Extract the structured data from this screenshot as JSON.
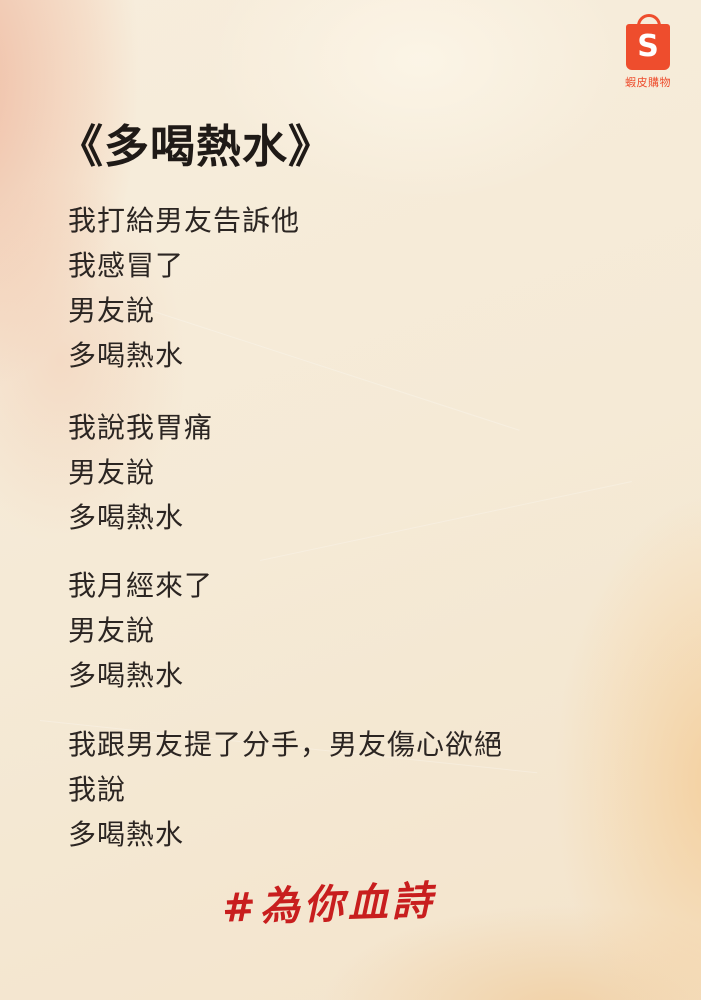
{
  "logo": {
    "glyph": "S",
    "label": "蝦皮購物"
  },
  "title": "《多喝熱水》",
  "stanzas": [
    [
      "我打給男友告訴他",
      "我感冒了",
      "男友說",
      "多喝熱水"
    ],
    [
      "我說我胃痛",
      "男友說",
      "多喝熱水"
    ],
    [
      "我月經來了",
      "男友說",
      "多喝熱水"
    ],
    [
      "我跟男友提了分手，男友傷心欲絕",
      "我說",
      "多喝熱水"
    ]
  ],
  "hashtag": "#為你血詩",
  "colors": {
    "brand": "#ee4d2d",
    "hashtag": "#c81e1e",
    "paper": "#f6ecd9",
    "text": "#2b2522"
  }
}
